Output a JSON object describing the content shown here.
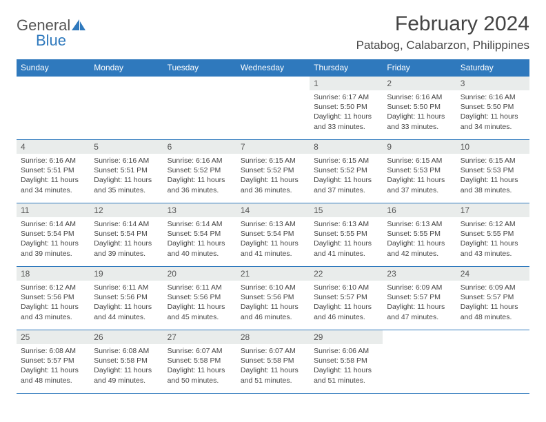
{
  "brand": {
    "word1": "General",
    "word2": "Blue"
  },
  "title": {
    "month": "February 2024",
    "location": "Patabog, Calabarzon, Philippines"
  },
  "colors": {
    "accent": "#2f79bd",
    "daynum_bg": "#e9eceb",
    "text": "#444444"
  },
  "calendar": {
    "daynames": [
      "Sunday",
      "Monday",
      "Tuesday",
      "Wednesday",
      "Thursday",
      "Friday",
      "Saturday"
    ],
    "first_weekday_index": 4,
    "days": [
      {
        "n": "1",
        "sunrise": "6:17 AM",
        "sunset": "5:50 PM",
        "daylight": "11 hours and 33 minutes."
      },
      {
        "n": "2",
        "sunrise": "6:16 AM",
        "sunset": "5:50 PM",
        "daylight": "11 hours and 33 minutes."
      },
      {
        "n": "3",
        "sunrise": "6:16 AM",
        "sunset": "5:50 PM",
        "daylight": "11 hours and 34 minutes."
      },
      {
        "n": "4",
        "sunrise": "6:16 AM",
        "sunset": "5:51 PM",
        "daylight": "11 hours and 34 minutes."
      },
      {
        "n": "5",
        "sunrise": "6:16 AM",
        "sunset": "5:51 PM",
        "daylight": "11 hours and 35 minutes."
      },
      {
        "n": "6",
        "sunrise": "6:16 AM",
        "sunset": "5:52 PM",
        "daylight": "11 hours and 36 minutes."
      },
      {
        "n": "7",
        "sunrise": "6:15 AM",
        "sunset": "5:52 PM",
        "daylight": "11 hours and 36 minutes."
      },
      {
        "n": "8",
        "sunrise": "6:15 AM",
        "sunset": "5:52 PM",
        "daylight": "11 hours and 37 minutes."
      },
      {
        "n": "9",
        "sunrise": "6:15 AM",
        "sunset": "5:53 PM",
        "daylight": "11 hours and 37 minutes."
      },
      {
        "n": "10",
        "sunrise": "6:15 AM",
        "sunset": "5:53 PM",
        "daylight": "11 hours and 38 minutes."
      },
      {
        "n": "11",
        "sunrise": "6:14 AM",
        "sunset": "5:54 PM",
        "daylight": "11 hours and 39 minutes."
      },
      {
        "n": "12",
        "sunrise": "6:14 AM",
        "sunset": "5:54 PM",
        "daylight": "11 hours and 39 minutes."
      },
      {
        "n": "13",
        "sunrise": "6:14 AM",
        "sunset": "5:54 PM",
        "daylight": "11 hours and 40 minutes."
      },
      {
        "n": "14",
        "sunrise": "6:13 AM",
        "sunset": "5:54 PM",
        "daylight": "11 hours and 41 minutes."
      },
      {
        "n": "15",
        "sunrise": "6:13 AM",
        "sunset": "5:55 PM",
        "daylight": "11 hours and 41 minutes."
      },
      {
        "n": "16",
        "sunrise": "6:13 AM",
        "sunset": "5:55 PM",
        "daylight": "11 hours and 42 minutes."
      },
      {
        "n": "17",
        "sunrise": "6:12 AM",
        "sunset": "5:55 PM",
        "daylight": "11 hours and 43 minutes."
      },
      {
        "n": "18",
        "sunrise": "6:12 AM",
        "sunset": "5:56 PM",
        "daylight": "11 hours and 43 minutes."
      },
      {
        "n": "19",
        "sunrise": "6:11 AM",
        "sunset": "5:56 PM",
        "daylight": "11 hours and 44 minutes."
      },
      {
        "n": "20",
        "sunrise": "6:11 AM",
        "sunset": "5:56 PM",
        "daylight": "11 hours and 45 minutes."
      },
      {
        "n": "21",
        "sunrise": "6:10 AM",
        "sunset": "5:56 PM",
        "daylight": "11 hours and 46 minutes."
      },
      {
        "n": "22",
        "sunrise": "6:10 AM",
        "sunset": "5:57 PM",
        "daylight": "11 hours and 46 minutes."
      },
      {
        "n": "23",
        "sunrise": "6:09 AM",
        "sunset": "5:57 PM",
        "daylight": "11 hours and 47 minutes."
      },
      {
        "n": "24",
        "sunrise": "6:09 AM",
        "sunset": "5:57 PM",
        "daylight": "11 hours and 48 minutes."
      },
      {
        "n": "25",
        "sunrise": "6:08 AM",
        "sunset": "5:57 PM",
        "daylight": "11 hours and 48 minutes."
      },
      {
        "n": "26",
        "sunrise": "6:08 AM",
        "sunset": "5:58 PM",
        "daylight": "11 hours and 49 minutes."
      },
      {
        "n": "27",
        "sunrise": "6:07 AM",
        "sunset": "5:58 PM",
        "daylight": "11 hours and 50 minutes."
      },
      {
        "n": "28",
        "sunrise": "6:07 AM",
        "sunset": "5:58 PM",
        "daylight": "11 hours and 51 minutes."
      },
      {
        "n": "29",
        "sunrise": "6:06 AM",
        "sunset": "5:58 PM",
        "daylight": "11 hours and 51 minutes."
      }
    ],
    "labels": {
      "sunrise": "Sunrise:",
      "sunset": "Sunset:",
      "daylight": "Daylight:"
    }
  }
}
